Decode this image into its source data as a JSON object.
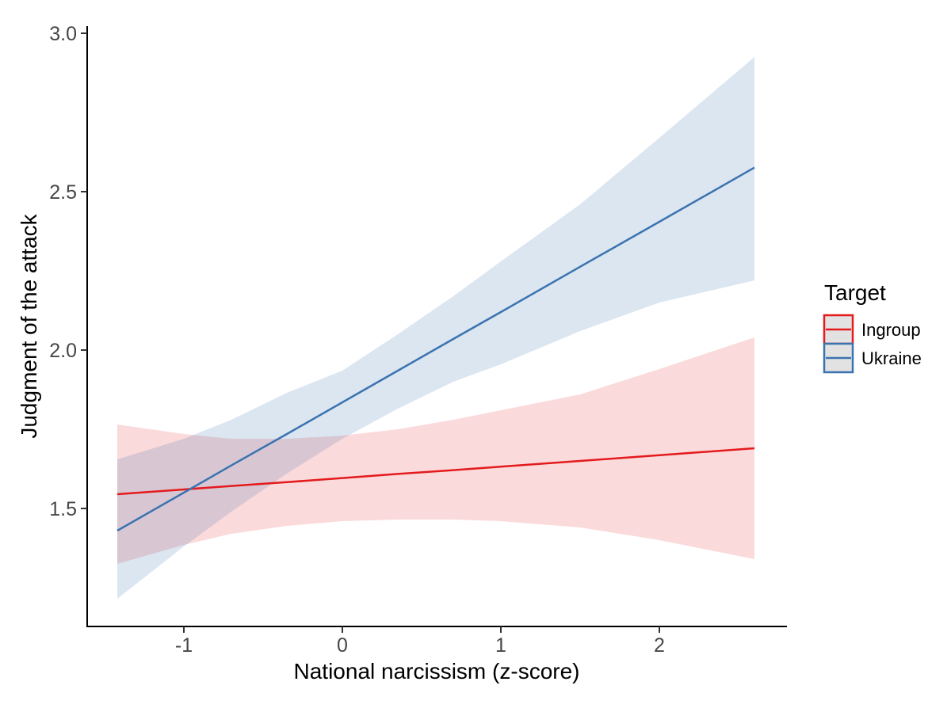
{
  "chart_data": {
    "type": "line",
    "title": "",
    "xlabel": "National narcissism (z-score)",
    "ylabel": "Judgment of the attack",
    "x_tick_labels": [
      "-1",
      "0",
      "1",
      "2"
    ],
    "x_tick_values": [
      -1,
      0,
      1,
      2
    ],
    "y_tick_labels": [
      "1.5",
      "2.0",
      "2.5",
      "3.0"
    ],
    "y_tick_values": [
      1.5,
      2.0,
      2.5,
      3.0
    ],
    "xlim": [
      -1.61,
      2.805
    ],
    "ylim": [
      1.1275,
      3.0225
    ],
    "grid": "off",
    "legend": {
      "title": "Target",
      "position": "right"
    },
    "series": [
      {
        "name": "Ingroup",
        "line_color": "#E41A1C",
        "fill_color": "rgba(228,26,28,0.16)",
        "x": [
          -1.42,
          -1.0,
          -0.7,
          -0.35,
          0.0,
          0.35,
          0.7,
          1.0,
          1.5,
          2.0,
          2.6
        ],
        "fit": [
          1.545,
          1.56,
          1.571,
          1.583,
          1.596,
          1.609,
          1.621,
          1.632,
          1.65,
          1.668,
          1.69
        ],
        "lo": [
          1.325,
          1.385,
          1.42,
          1.445,
          1.46,
          1.465,
          1.465,
          1.46,
          1.44,
          1.4,
          1.34
        ],
        "hi": [
          1.765,
          1.735,
          1.72,
          1.72,
          1.73,
          1.75,
          1.78,
          1.81,
          1.86,
          1.94,
          2.04
        ]
      },
      {
        "name": "Ukraine",
        "line_color": "#3B73B0",
        "fill_color": "rgba(59,115,176,0.18)",
        "x": [
          -1.42,
          -1.0,
          -0.7,
          -0.35,
          0.0,
          0.35,
          0.7,
          1.0,
          1.5,
          2.0,
          2.6
        ],
        "fit": [
          1.43,
          1.55,
          1.636,
          1.735,
          1.835,
          1.935,
          2.035,
          2.12,
          2.263,
          2.405,
          2.576
        ],
        "lo": [
          1.215,
          1.38,
          1.49,
          1.61,
          1.72,
          1.815,
          1.9,
          1.955,
          2.06,
          2.15,
          2.22
        ],
        "hi": [
          1.655,
          1.72,
          1.78,
          1.865,
          1.935,
          2.05,
          2.17,
          2.28,
          2.46,
          2.67,
          2.925
        ]
      }
    ]
  },
  "style": {
    "axis_color": "#000000",
    "tick_color": "#333333",
    "tick_label_color": "#474747",
    "title_color": "#000000",
    "legend_key_fill": "#e2e2e2",
    "background": "#ffffff"
  }
}
